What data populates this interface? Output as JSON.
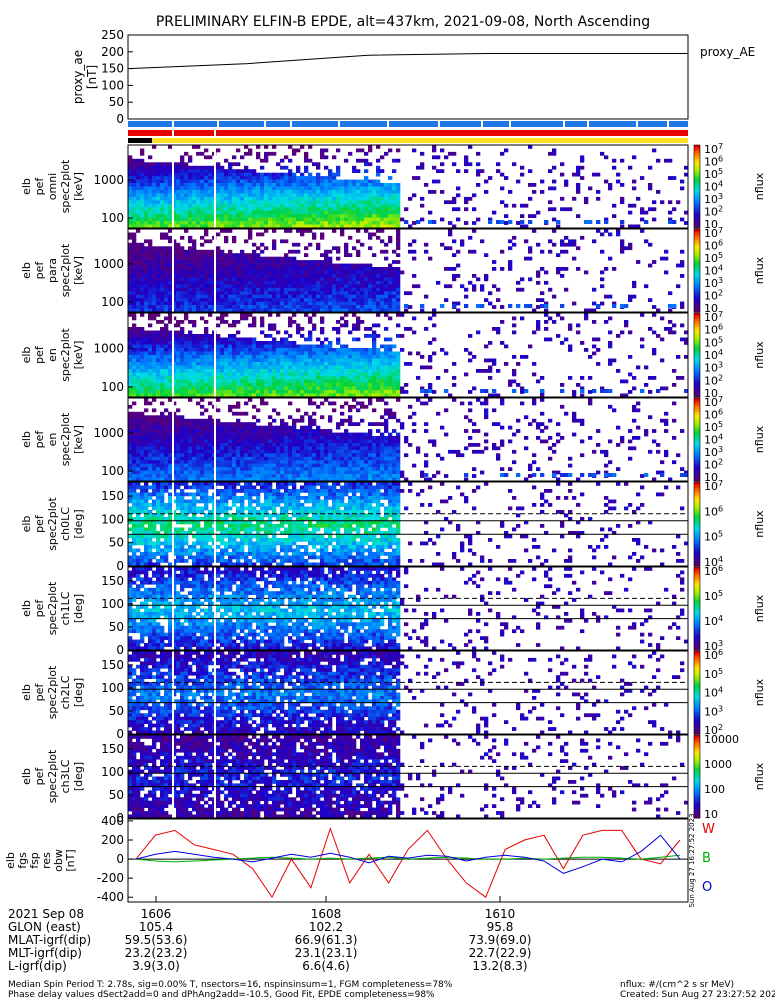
{
  "title": "PRELIMINARY ELFIN-B EPDE, alt=437km, 2021-09-08, North Ascending",
  "colors": {
    "bar_blue": "#1e78e6",
    "bar_red": "#e60000",
    "bar_yellow": "#ffe020",
    "trace_black": "#000000",
    "trace_W": "#e60000",
    "trace_B": "#00b000",
    "trace_O": "#0000e0"
  },
  "chart_data": [
    {
      "type": "line",
      "panel": "proxy_ae",
      "ylabel": "proxy_ae [nT]",
      "yticks": [
        "250",
        "200",
        "150",
        "100",
        "50",
        "0"
      ],
      "ylim": [
        0,
        250
      ],
      "legend": "proxy_AE",
      "x": [
        "1605.0",
        "1606.5",
        "1608.0",
        "1609.5",
        "1612.0"
      ],
      "values": [
        150,
        165,
        190,
        195,
        195
      ]
    },
    {
      "type": "heatmap",
      "panel": "elb pef spec2plot omni",
      "ylabel": [
        "elb",
        "pef",
        "omni",
        "spec2plot",
        "[keV]"
      ],
      "ytick_labels": [
        "1000",
        "100"
      ],
      "scale": "log",
      "colorbar_label": "nflux",
      "colorbar_ticks": [
        "10^7",
        "10^6",
        "10^5",
        "10^4",
        "10^3",
        "10^2",
        "10"
      ]
    },
    {
      "type": "heatmap",
      "panel": "elb pef spec2plot para",
      "ylabel": [
        "elb",
        "pef",
        "para",
        "spec2plot",
        "[keV]"
      ],
      "ytick_labels": [
        "1000",
        "100"
      ],
      "scale": "log",
      "colorbar_label": "nflux",
      "colorbar_ticks": [
        "10^7",
        "10^6",
        "10^5",
        "10^4",
        "10^3",
        "10^2",
        "10"
      ]
    },
    {
      "type": "heatmap",
      "panel": "elb pef en spec2plot perp",
      "ylabel": [
        "elb",
        "pef",
        "en",
        "spec2plot",
        "[keV]"
      ],
      "ytick_labels": [
        "1000",
        "100"
      ],
      "scale": "log",
      "colorbar_label": "nflux",
      "colorbar_ticks": [
        "10^7",
        "10^6",
        "10^5",
        "10^4",
        "10^3",
        "10^2",
        "10"
      ]
    },
    {
      "type": "heatmap",
      "panel": "elb pef en spec2plot anti",
      "ylabel": [
        "elb",
        "pef",
        "en",
        "spec2plot",
        "[keV]"
      ],
      "ytick_labels": [
        "1000",
        "100"
      ],
      "scale": "log",
      "colorbar_label": "nflux",
      "colorbar_ticks": [
        "10^7",
        "10^6",
        "10^5",
        "10^4",
        "10^3",
        "10^2",
        "10"
      ]
    },
    {
      "type": "heatmap",
      "panel": "elb pef spec2plot ch0LC",
      "ylabel": [
        "elb",
        "pef",
        "spec2plot",
        "ch0LC",
        "[deg]"
      ],
      "yticks": [
        "150",
        "100",
        "50",
        "0"
      ],
      "ylim": [
        0,
        180
      ],
      "colorbar_label": "nflux",
      "colorbar_ticks": [
        "10^7",
        "10^6",
        "10^5",
        "10^4"
      ]
    },
    {
      "type": "heatmap",
      "panel": "elb pef spec2plot ch1LC",
      "ylabel": [
        "elb",
        "pef",
        "spec2plot",
        "ch1LC",
        "[deg]"
      ],
      "yticks": [
        "150",
        "100",
        "50",
        "0"
      ],
      "ylim": [
        0,
        180
      ],
      "colorbar_label": "nflux",
      "colorbar_ticks": [
        "10^6",
        "10^5",
        "10^4",
        "10^3"
      ]
    },
    {
      "type": "heatmap",
      "panel": "elb pef spec2plot ch2LC",
      "ylabel": [
        "elb",
        "pef",
        "spec2plot",
        "ch2LC",
        "[deg]"
      ],
      "yticks": [
        "150",
        "100",
        "50",
        "0"
      ],
      "ylim": [
        0,
        180
      ],
      "colorbar_label": "nflux",
      "colorbar_ticks": [
        "10^6",
        "10^5",
        "10^4",
        "10^3",
        "10^2"
      ]
    },
    {
      "type": "heatmap",
      "panel": "elb pef spec2plot ch3LC",
      "ylabel": [
        "elb",
        "pef",
        "spec2plot",
        "ch3LC",
        "[deg]"
      ],
      "yticks": [
        "150",
        "100",
        "50",
        "0"
      ],
      "ylim": [
        0,
        180
      ],
      "colorbar_label": "nflux",
      "colorbar_ticks": [
        "10000",
        "1000",
        "100",
        "10"
      ]
    },
    {
      "type": "line",
      "panel": "elb fgs fsp res obw",
      "ylabel": [
        "elb",
        "fgs",
        "fsp",
        "res",
        "obw",
        "[nT]"
      ],
      "yticks": [
        "400",
        "200",
        "0",
        "-200",
        "-400"
      ],
      "ylim": [
        -450,
        420
      ],
      "legend": [
        "W",
        "B",
        "O"
      ],
      "series": [
        {
          "name": "W",
          "values": [
            0,
            250,
            300,
            150,
            100,
            50,
            -100,
            -400,
            0,
            -300,
            320,
            -250,
            50,
            -250,
            100,
            300,
            0,
            -250,
            -400,
            100,
            200,
            250,
            -100,
            250,
            300,
            300,
            0,
            -50,
            200
          ]
        },
        {
          "name": "B",
          "values": [
            0,
            -20,
            -30,
            -20,
            -10,
            0,
            10,
            20,
            10,
            0,
            10,
            0,
            10,
            20,
            0,
            10,
            20,
            10,
            0,
            0,
            10,
            0,
            10,
            20,
            20,
            10,
            0,
            20,
            40
          ]
        },
        {
          "name": "O",
          "values": [
            0,
            50,
            80,
            50,
            20,
            0,
            -30,
            10,
            50,
            20,
            60,
            20,
            -40,
            30,
            10,
            40,
            30,
            -20,
            20,
            40,
            20,
            -20,
            -150,
            -80,
            0,
            -30,
            80,
            250,
            0
          ]
        }
      ],
      "side_text": "Sun Aug 27 16:27:52 2023"
    }
  ],
  "x_axis": {
    "tick_labels": [
      "1606",
      "1608",
      "1610"
    ],
    "rows": [
      {
        "label": "2021 Sep 08",
        "values": [
          "1606",
          "1608",
          "1610"
        ]
      },
      {
        "label": "GLON (east)",
        "values": [
          "105.4",
          "102.2",
          "95.8"
        ]
      },
      {
        "label": "MLAT-igrf(dip)",
        "values": [
          "59.5(53.6)",
          "66.9(61.3)",
          "73.9(69.0)"
        ]
      },
      {
        "label": "MLT-igrf(dip)",
        "values": [
          "23.2(23.2)",
          "23.1(23.1)",
          "22.7(22.9)"
        ]
      },
      {
        "label": "L-igrf(dip)",
        "values": [
          "3.9(3.0)",
          "6.6(4.6)",
          "13.2(8.3)"
        ]
      }
    ]
  },
  "footer": {
    "line1": "Median Spin Period T: 2.78s, sig=0.00% T, nsectors=16, nspinsinsum=1, FGM completeness=78%",
    "line2": "Phase delay values dSect2add=0 and dPhAng2add=-10.5, Good Fit, EPDE completeness=98%",
    "units": "nflux: #/(cm^2 s sr MeV)",
    "created": "Created: Sun Aug 27 23:27:52 2023"
  }
}
